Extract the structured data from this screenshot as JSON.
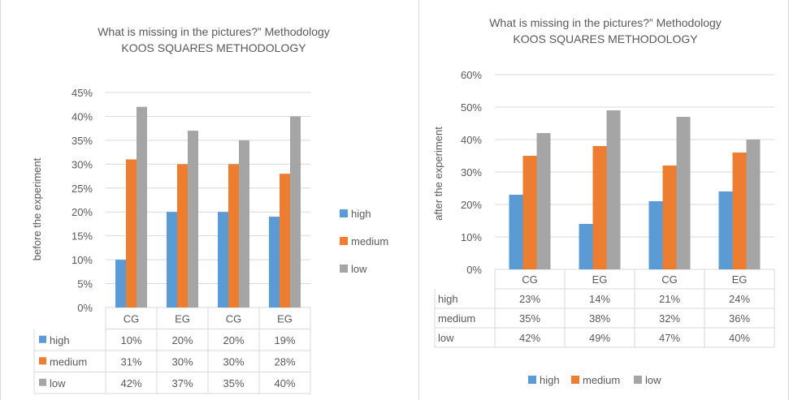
{
  "colors": {
    "high": "#5b9bd5",
    "medium": "#ed7d31",
    "low": "#a5a5a5",
    "grid": "#d9d9d9",
    "text": "#595959"
  },
  "chart_data": [
    {
      "type": "bar",
      "title": "What is missing in the pictures?” Methodology",
      "subtitle": "KOOS SQUARES METHODOLOGY",
      "ylabel": "before the experiment",
      "xlabel": "",
      "categories": [
        "CG",
        "EG",
        "CG",
        "EG"
      ],
      "ylim": [
        0,
        45
      ],
      "yticks": [
        "0%",
        "5%",
        "10%",
        "15%",
        "20%",
        "25%",
        "30%",
        "35%",
        "40%",
        "45%"
      ],
      "grid": true,
      "legend_position": "right",
      "data_table": true,
      "series": [
        {
          "name": "high",
          "values": [
            10,
            20,
            20,
            19
          ],
          "labels": [
            "10%",
            "20%",
            "20%",
            "19%"
          ]
        },
        {
          "name": "medium",
          "values": [
            31,
            30,
            30,
            28
          ],
          "labels": [
            "31%",
            "30%",
            "30%",
            "28%"
          ]
        },
        {
          "name": "low",
          "values": [
            42,
            37,
            35,
            40
          ],
          "labels": [
            "42%",
            "37%",
            "35%",
            "40%"
          ]
        }
      ]
    },
    {
      "type": "bar",
      "title": "What is missing in the pictures?” Methodology",
      "subtitle": "KOOS SQUARES METHODOLOGY",
      "ylabel": "after  the experiment",
      "xlabel": "",
      "categories": [
        "CG",
        "EG",
        "CG",
        "EG"
      ],
      "ylim": [
        0,
        60
      ],
      "yticks": [
        "0%",
        "10%",
        "20%",
        "30%",
        "40%",
        "50%",
        "60%"
      ],
      "grid": true,
      "legend_position": "bottom",
      "data_table": true,
      "series": [
        {
          "name": "high",
          "values": [
            23,
            14,
            21,
            24
          ],
          "labels": [
            "23%",
            "14%",
            "21%",
            "24%"
          ]
        },
        {
          "name": "medium",
          "values": [
            35,
            38,
            32,
            36
          ],
          "labels": [
            "35%",
            "38%",
            "32%",
            "36%"
          ]
        },
        {
          "name": "low",
          "values": [
            42,
            49,
            47,
            40
          ],
          "labels": [
            "42%",
            "49%",
            "47%",
            "40%"
          ]
        }
      ]
    }
  ]
}
